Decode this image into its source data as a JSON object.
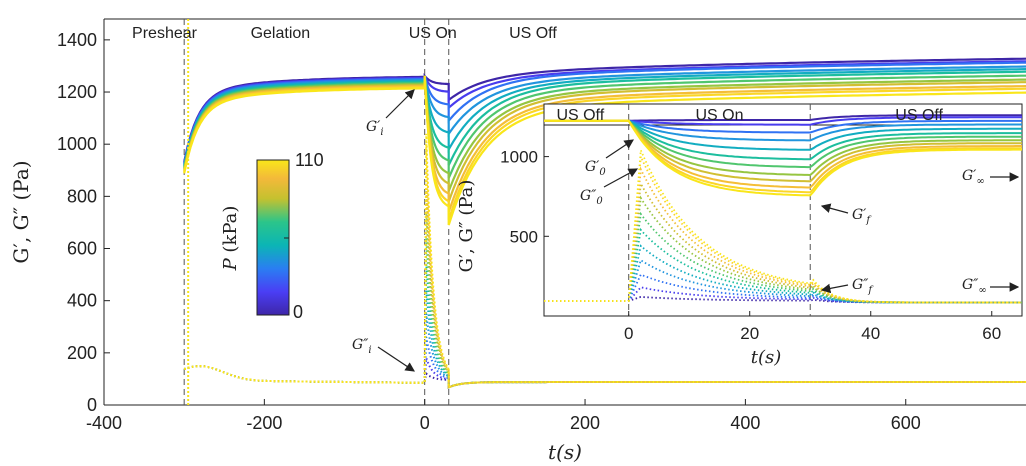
{
  "chart_data": [
    {
      "type": "line",
      "xlabel": "t(s)",
      "ylabel": "G′, G″ (Pa)",
      "xlim": [
        -400,
        750
      ],
      "ylim": [
        0,
        1480
      ],
      "xticks": [
        "-400",
        "-200",
        "0",
        "200",
        "400",
        "600"
      ],
      "xtick_values": [
        -400,
        -200,
        0,
        200,
        400,
        600
      ],
      "yticks": [
        "0",
        "200",
        "400",
        "600",
        "800",
        "1000",
        "1200",
        "1400"
      ],
      "ytick_values": [
        0,
        200,
        400,
        600,
        800,
        1000,
        1200,
        1400
      ],
      "phase_labels": [
        {
          "text": "Preshear",
          "x": -365
        },
        {
          "text": "Gelation",
          "x": -180
        },
        {
          "text": "US On",
          "x": 10
        },
        {
          "text": "US Off",
          "x": 135
        }
      ],
      "vlines": [
        -300,
        0,
        30
      ],
      "annotations": [
        {
          "label": "G′i",
          "points_to": [
            0,
            1260
          ]
        },
        {
          "label": "G″i",
          "points_to": [
            0,
            95
          ]
        }
      ],
      "colorbar": {
        "label": "P (kPa)",
        "min": "0",
        "max": "110",
        "colormap": "parula"
      },
      "pressures": [
        0,
        10,
        20,
        30,
        40,
        50,
        60,
        70,
        80,
        90,
        100,
        110
      ],
      "G_prime_plateau_end": [
        1330,
        1320,
        1315,
        1300,
        1290,
        1280,
        1265,
        1250,
        1240,
        1225,
        1215,
        1200
      ],
      "G_prime_min_US": [
        1230,
        1200,
        1150,
        1100,
        1040,
        980,
        930,
        880,
        840,
        800,
        770,
        750
      ],
      "G_double_prime_peak_US": [
        120,
        180,
        260,
        350,
        440,
        540,
        640,
        740,
        830,
        920,
        1000,
        1040
      ]
    },
    {
      "type": "line",
      "name": "inset",
      "xlabel": "t(s)",
      "ylabel": "G′, G″ (Pa)",
      "xlim": [
        -14,
        65
      ],
      "ylim": [
        0,
        1330
      ],
      "xticks": [
        "0",
        "20",
        "40",
        "60"
      ],
      "xtick_values": [
        0,
        20,
        40,
        60
      ],
      "yticks": [
        "500",
        "1000"
      ],
      "ytick_values": [
        500,
        1000
      ],
      "phase_labels": [
        {
          "text": "US Off",
          "x": -8
        },
        {
          "text": "US On",
          "x": 15
        },
        {
          "text": "US Off",
          "x": 48
        }
      ],
      "vlines": [
        0,
        30
      ],
      "annotations": [
        {
          "label": "G′0",
          "points_to": [
            0,
            1210
          ]
        },
        {
          "label": "G″0",
          "points_to": [
            0,
            880
          ]
        },
        {
          "label": "G′f",
          "points_to": [
            30,
            760
          ]
        },
        {
          "label": "G″f",
          "points_to": [
            30,
            190
          ]
        },
        {
          "label": "G′∞",
          "points_to": [
            65,
            1050
          ]
        },
        {
          "label": "G″∞",
          "points_to": [
            65,
            90
          ]
        }
      ]
    }
  ],
  "colors": {
    "colormap": [
      "#3e26a8",
      "#4a3ef5",
      "#2a7ef2",
      "#1d9ed7",
      "#0bb5b5",
      "#2bc58a",
      "#7cc84c",
      "#c4c12f",
      "#f3b93a",
      "#fbd428",
      "#f9e61a"
    ]
  }
}
